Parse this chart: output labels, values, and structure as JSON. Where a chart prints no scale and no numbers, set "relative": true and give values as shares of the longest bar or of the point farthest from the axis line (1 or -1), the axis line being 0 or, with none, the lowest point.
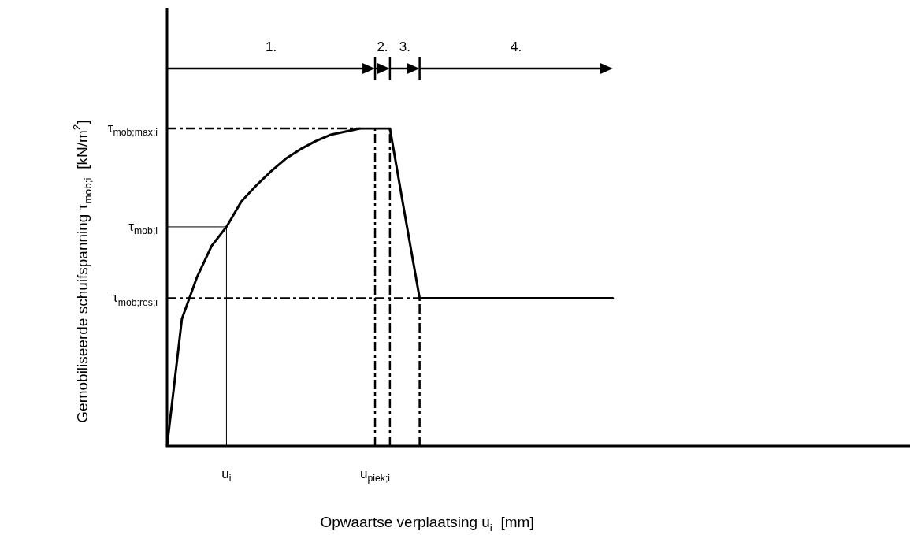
{
  "chart_data": {
    "type": "line",
    "relative": true,
    "xlabel": "Opwaartse verplaatsing u$_{i}$  [mm]",
    "ylabel": "Gemobiliseerde schuifspanning τ$_{mob;i}$  [kN/m$^{2}$]",
    "categories": [
      null,
      null,
      null,
      null,
      "u$_{i}$",
      null,
      null,
      null,
      null,
      null,
      null,
      null,
      null,
      null,
      "u$_{piek;i}$",
      null,
      null,
      null,
      null,
      null,
      null,
      null,
      null,
      null,
      null,
      null,
      null,
      null,
      null,
      null,
      null,
      null,
      null,
      null,
      null,
      null,
      null,
      null,
      null,
      null,
      null,
      null,
      null,
      null,
      null,
      null,
      null,
      null,
      null,
      null,
      null
    ],
    "series": [
      {
        "color": "#000000",
        "values": [
          0,
          0.4,
          0.53,
          0.63,
          0.69,
          0.77,
          0.82,
          0.865,
          0.905,
          0.935,
          0.96,
          0.98,
          0.99,
          1,
          1,
          1,
          0.73,
          0.465,
          0.465,
          0.465,
          0.465,
          0.465,
          0.465,
          0.465,
          0.465,
          0.465,
          0.465,
          0.465,
          0.465,
          0.465,
          0.465,
          null,
          null,
          null,
          null,
          null,
          null,
          null,
          null,
          null,
          null,
          null,
          null,
          null,
          null,
          null,
          null,
          null,
          null,
          null,
          null
        ]
      }
    ],
    "ref_lines": [
      {
        "axis": "y",
        "value": 1,
        "line_style": "dashed",
        "label": "τ$_{mob;max;i}$"
      },
      {
        "axis": "y",
        "value": 0.69,
        "line_style": "solid",
        "label": "τ$_{mob;i}$"
      },
      {
        "axis": "y",
        "value": 0.465,
        "line_style": "dashed",
        "label": "τ$_{mob;res;i}$"
      },
      {
        "axis": "x",
        "value": "u$_{i}$",
        "line_style": "solid"
      },
      {
        "axis": "x",
        "value": "u$_{piek;i}$",
        "line_style": "dashed"
      }
    ],
    "annotations": [
      "1.",
      "2.",
      "3.",
      "4."
    ],
    "marker": "none",
    "line_style": "solid"
  }
}
